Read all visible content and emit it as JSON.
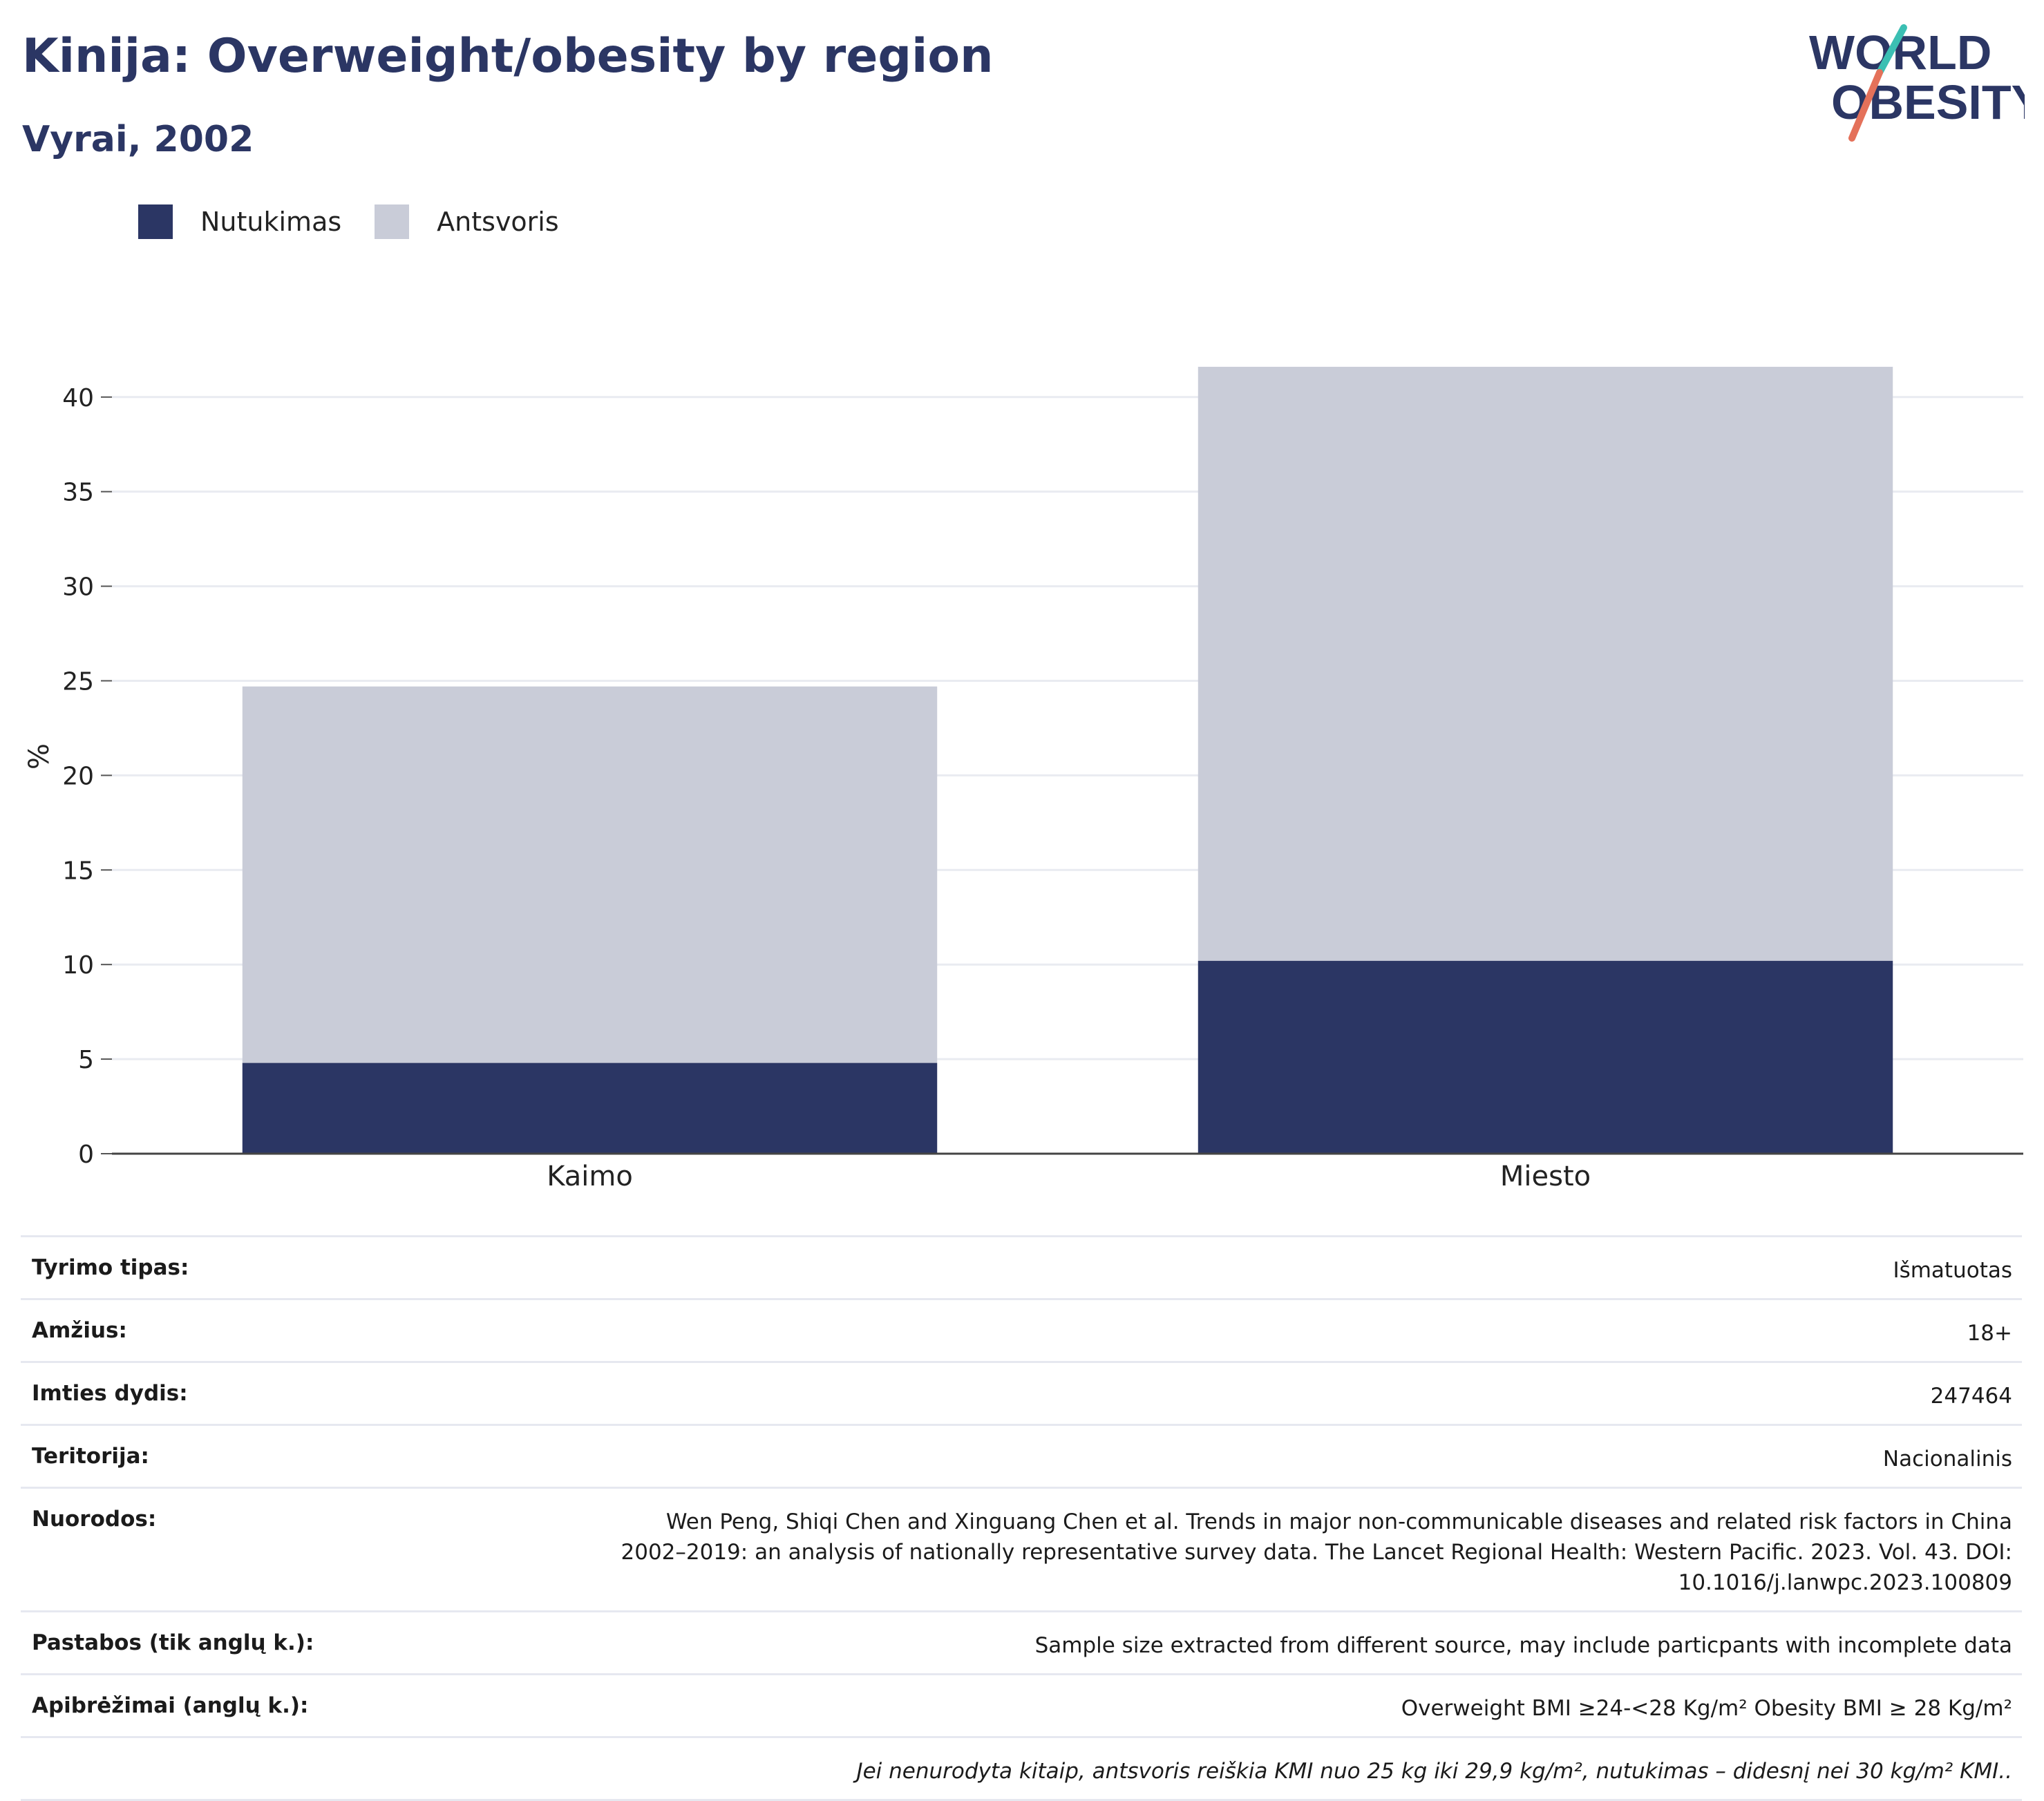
{
  "header": {
    "title": "Kinija: Overweight/obesity by region",
    "subtitle": "Vyrai, 2002"
  },
  "logo": {
    "line1": "WORLD",
    "line2": "OBESITY"
  },
  "legend": {
    "items": [
      {
        "label": "Nutukimas",
        "color": "#2b3664"
      },
      {
        "label": "Antsvoris",
        "color": "#c9ccd8"
      }
    ]
  },
  "chart_data": {
    "type": "bar",
    "stacked": true,
    "categories": [
      "Kaimo",
      "Miesto"
    ],
    "series": [
      {
        "name": "Nutukimas",
        "values": [
          4.8,
          10.2
        ],
        "color": "#2b3664"
      },
      {
        "name": "Antsvoris",
        "values": [
          19.9,
          31.4
        ],
        "color": "#c9ccd8"
      }
    ],
    "ylabel": "%",
    "xlabel": "",
    "ylim": [
      0,
      42
    ],
    "yticks": [
      0,
      5,
      10,
      15,
      20,
      25,
      30,
      35,
      40
    ],
    "grid": true,
    "legend_position": "top-left"
  },
  "meta": {
    "rows": [
      {
        "label": "Tyrimo tipas:",
        "value": "Išmatuotas"
      },
      {
        "label": "Amžius:",
        "value": "18+"
      },
      {
        "label": "Imties dydis:",
        "value": "247464"
      },
      {
        "label": "Teritorija:",
        "value": "Nacionalinis"
      },
      {
        "label": "Nuorodos:",
        "value": "Wen Peng, Shiqi Chen and Xinguang Chen et al. Trends in major non-communicable diseases and related risk factors in China 2002–2019: an analysis of nationally representative survey data. The Lancet Regional Health: Western Pacific. 2023. Vol. 43. DOI: 10.1016/j.lanwpc.2023.100809"
      },
      {
        "label": "Pastabos (tik anglų k.):",
        "value": "Sample size extracted from different source, may include particpants with incomplete data"
      },
      {
        "label": "Apibrėžimai (anglų k.):",
        "value": "Overweight BMI ≥24-<28 Kg/m² Obesity BMI ≥ 28 Kg/m²"
      }
    ],
    "note": "Jei nenurodyta kitaip, antsvoris reiškia KMI nuo 25 kg iki 29,9 kg/m², nutukimas – didesnį nei 30 kg/m² KMI.."
  }
}
